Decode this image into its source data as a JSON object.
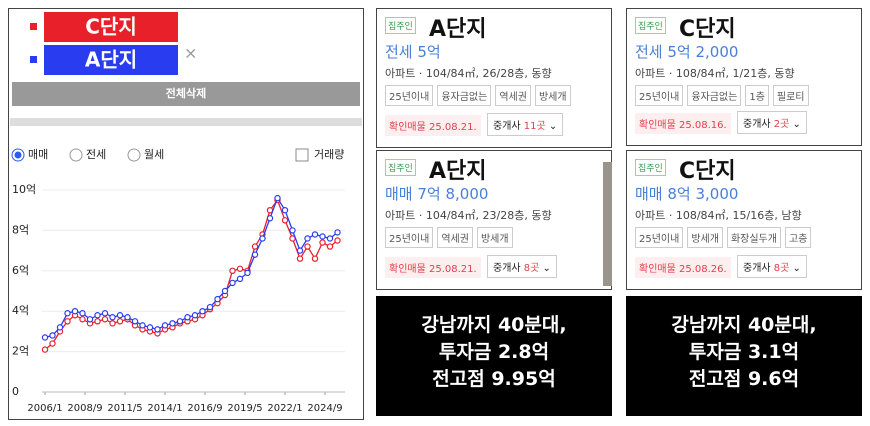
{
  "chart_data": {
    "type": "line",
    "legend": [
      "C단지",
      "A단지"
    ],
    "close_mark": "×",
    "delete_button": "전체삭제",
    "radios": [
      "매매",
      "전세",
      "월세"
    ],
    "selected_radio": 0,
    "checkbox": "거래량",
    "x": [
      "2006/1",
      "2006/7",
      "2007/1",
      "2007/7",
      "2008/1",
      "2008/7",
      "2009/1",
      "2009/7",
      "2010/1",
      "2010/7",
      "2011/1",
      "2011/7",
      "2012/1",
      "2012/7",
      "2013/1",
      "2013/7",
      "2014/1",
      "2014/7",
      "2015/1",
      "2015/7",
      "2016/1",
      "2016/7",
      "2017/1",
      "2017/7",
      "2018/1",
      "2018/7",
      "2019/1",
      "2019/7",
      "2020/1",
      "2020/7",
      "2021/1",
      "2021/7",
      "2022/1",
      "2022/7",
      "2023/1",
      "2023/7",
      "2024/1",
      "2024/7",
      "2025/1",
      "2025/7"
    ],
    "series": [
      {
        "name": "C단지",
        "color": "#e8202a",
        "values": [
          2.1,
          2.4,
          3.0,
          3.5,
          3.8,
          3.6,
          3.4,
          3.5,
          3.6,
          3.4,
          3.5,
          3.6,
          3.3,
          3.1,
          3.0,
          2.9,
          3.1,
          3.2,
          3.4,
          3.5,
          3.6,
          3.8,
          4.1,
          4.4,
          4.8,
          6.0,
          6.1,
          6.0,
          7.2,
          7.8,
          9.0,
          9.5,
          8.5,
          7.6,
          6.6,
          7.2,
          6.6,
          7.4,
          7.2,
          7.5
        ]
      },
      {
        "name": "A단지",
        "color": "#2a3cf0",
        "values": [
          2.7,
          2.8,
          3.2,
          3.9,
          4.0,
          3.9,
          3.6,
          3.8,
          3.9,
          3.7,
          3.8,
          3.7,
          3.5,
          3.3,
          3.2,
          3.1,
          3.3,
          3.4,
          3.5,
          3.7,
          3.8,
          4.0,
          4.2,
          4.6,
          5.0,
          5.4,
          5.6,
          5.9,
          6.8,
          7.6,
          8.6,
          9.6,
          9.0,
          8.0,
          7.0,
          7.6,
          7.8,
          7.7,
          7.6,
          7.9
        ]
      }
    ],
    "xlim": [
      "2006/1",
      "2025/9"
    ],
    "xticks": [
      "2006/1",
      "2008/9",
      "2011/5",
      "2014/1",
      "2016/9",
      "2019/5",
      "2022/1",
      "2024/9"
    ],
    "ylim": [
      0,
      10
    ],
    "yticks": [
      0,
      {
        "value": 2,
        "label": "2억"
      },
      {
        "value": 4,
        "label": "4억"
      },
      {
        "value": 6,
        "label": "6억"
      },
      {
        "value": 8,
        "label": "8억"
      },
      {
        "value": 10,
        "label": "10억"
      }
    ]
  },
  "cards": [
    {
      "owner": "집주인",
      "name": "A단지",
      "price": "전세 5억",
      "spec": "아파트 · 104/84㎡, 26/28층, 동향",
      "tags": [
        "25년이내",
        "융자금없는",
        "역세권",
        "방세개"
      ],
      "confirmed": "확인매물 25.08.21.",
      "agent": "중개사",
      "agent_count": "11곳"
    },
    {
      "owner": "집주인",
      "name": "A단지",
      "price": "매매 7억 8,000",
      "spec": "아파트 · 104/84㎡, 23/28층, 동향",
      "tags": [
        "25년이내",
        "역세권",
        "방세개"
      ],
      "confirmed": "확인매물 25.08.21.",
      "agent": "중개사",
      "agent_count": "8곳"
    },
    {
      "owner": "집주인",
      "name": "C단지",
      "price": "전세 5억 2,000",
      "spec": "아파트 · 108/84㎡, 1/21층, 동향",
      "tags": [
        "25년이내",
        "융자금없는",
        "1층",
        "필로티"
      ],
      "confirmed": "확인매물 25.08.16.",
      "agent": "중개사",
      "agent_count": "2곳"
    },
    {
      "owner": "집주인",
      "name": "C단지",
      "price": "매매 8억 3,000",
      "spec": "아파트 · 108/84㎡, 15/16층, 남향",
      "tags": [
        "25년이내",
        "방세개",
        "화장실두개",
        "고층"
      ],
      "confirmed": "확인매물 25.08.26.",
      "agent": "중개사",
      "agent_count": "8곳"
    }
  ],
  "notes": [
    [
      "강남까지 40분대,",
      "투자금 2.8억",
      "전고점 9.95억"
    ],
    [
      "강남까지 40분대,",
      "투자금 3.1억",
      "전고점 9.6억"
    ]
  ]
}
